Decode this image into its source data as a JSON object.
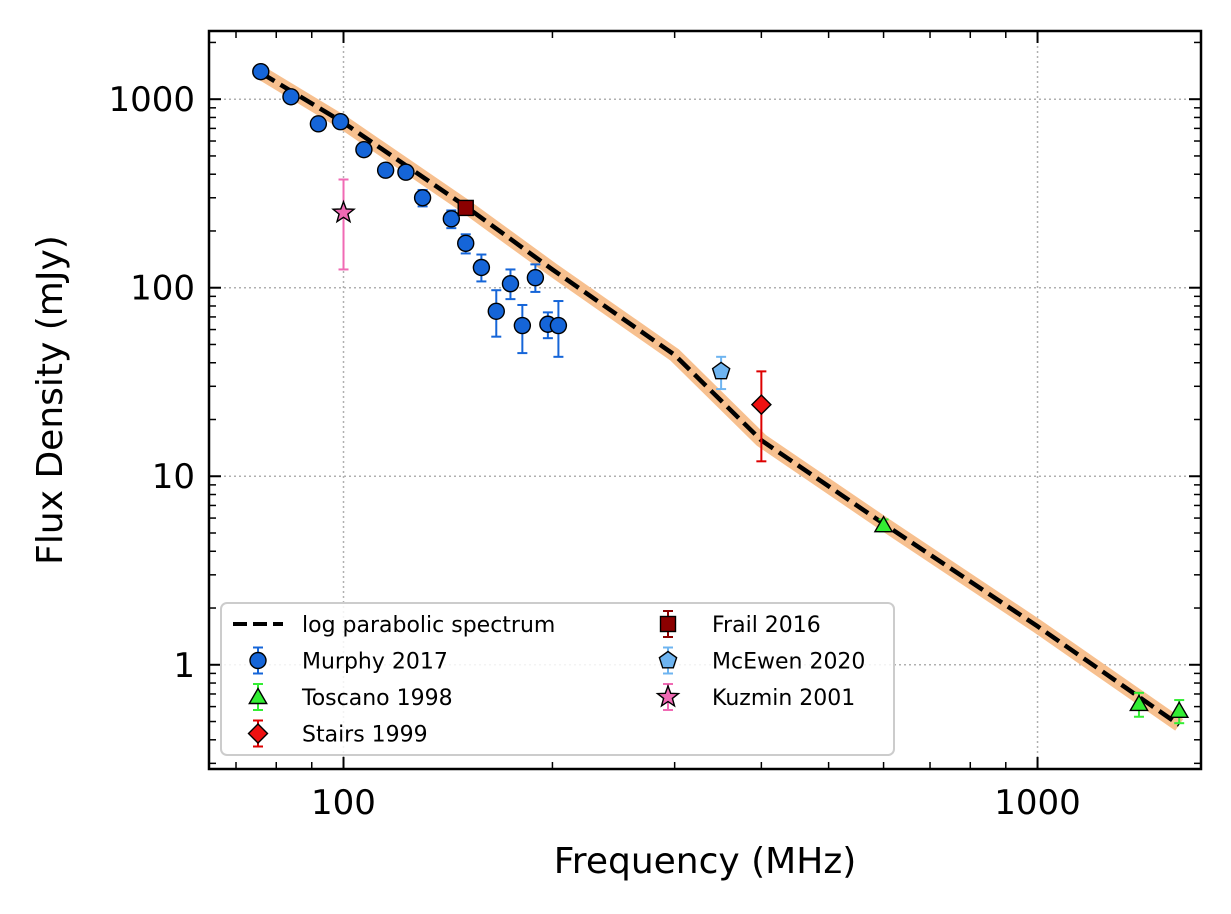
{
  "chart_data": {
    "type": "scatter",
    "xlabel": "Frequency (MHz)",
    "ylabel": "Flux Density (mJy)",
    "xscale": "log",
    "yscale": "log",
    "xlim": [
      64,
      1720
    ],
    "ylim": [
      0.28,
      2300
    ],
    "grid": true,
    "legend_placement": "lower-left",
    "x_ticks": [
      {
        "value": 100,
        "label": "100"
      },
      {
        "value": 1000,
        "label": "1000"
      }
    ],
    "y_ticks": [
      {
        "value": 1,
        "label": "1"
      },
      {
        "value": 10,
        "label": "10"
      },
      {
        "value": 100,
        "label": "100"
      },
      {
        "value": 1000,
        "label": "1000"
      }
    ],
    "fit": {
      "name": "log parabolic spectrum",
      "color": "#000000",
      "band_color": "#f7c08f",
      "x": [
        76,
        100,
        150,
        200,
        300,
        400,
        600,
        1000,
        1600
      ],
      "y": [
        1380,
        750,
        270,
        125,
        44,
        15.5,
        5.6,
        1.6,
        0.48
      ]
    },
    "series": [
      {
        "name": "Murphy 2017",
        "marker": "circle",
        "color": "#1565d8",
        "err_color": "#1565d8",
        "points": [
          {
            "x": 76,
            "y": 1400,
            "err": [
              0,
              0
            ]
          },
          {
            "x": 84,
            "y": 1030,
            "err": [
              0,
              0
            ]
          },
          {
            "x": 92,
            "y": 740,
            "err": [
              0,
              0
            ]
          },
          {
            "x": 99,
            "y": 760,
            "err": [
              0,
              0
            ]
          },
          {
            "x": 107,
            "y": 540,
            "err": [
              0,
              0
            ]
          },
          {
            "x": 115,
            "y": 420,
            "err": [
              0,
              0
            ]
          },
          {
            "x": 123,
            "y": 410,
            "err": [
              0,
              0
            ]
          },
          {
            "x": 130,
            "y": 300,
            "err": [
              30,
              30
            ]
          },
          {
            "x": 143,
            "y": 232,
            "err": [
              25,
              25
            ]
          },
          {
            "x": 150,
            "y": 172,
            "err": [
              20,
              20
            ]
          },
          {
            "x": 158,
            "y": 128,
            "err": [
              20,
              22
            ]
          },
          {
            "x": 166,
            "y": 75,
            "err": [
              20,
              22
            ]
          },
          {
            "x": 174,
            "y": 105,
            "err": [
              18,
              20
            ]
          },
          {
            "x": 181,
            "y": 63,
            "err": [
              18,
              18
            ]
          },
          {
            "x": 189,
            "y": 113,
            "err": [
              18,
              20
            ]
          },
          {
            "x": 197,
            "y": 64,
            "err": [
              10,
              10
            ]
          },
          {
            "x": 204,
            "y": 63,
            "err": [
              20,
              22
            ]
          }
        ]
      },
      {
        "name": "Toscano 1998",
        "marker": "triangle",
        "color": "#33ee33",
        "err_color": "#33ee33",
        "points": [
          {
            "x": 600,
            "y": 5.5,
            "err": [
              0.4,
              0.4
            ]
          },
          {
            "x": 1400,
            "y": 0.62,
            "err": [
              0.09,
              0.09
            ]
          },
          {
            "x": 1600,
            "y": 0.57,
            "err": [
              0.08,
              0.08
            ]
          }
        ]
      },
      {
        "name": "Stairs 1999",
        "marker": "diamond",
        "color": "#ee1111",
        "err_color": "#dd0000",
        "points": [
          {
            "x": 400,
            "y": 24,
            "err": [
              12,
              12
            ]
          }
        ]
      },
      {
        "name": "Frail 2016",
        "marker": "square",
        "color": "#8b0000",
        "err_color": "#8b0000",
        "points": [
          {
            "x": 150,
            "y": 265,
            "err": [
              0,
              0
            ]
          }
        ]
      },
      {
        "name": "McEwen 2020",
        "marker": "pentagon",
        "color": "#6eb4f0",
        "err_color": "#6eb4f0",
        "points": [
          {
            "x": 350,
            "y": 36,
            "err": [
              7,
              7
            ]
          }
        ]
      },
      {
        "name": "Kuzmin 2001",
        "marker": "star",
        "color": "#f06ab4",
        "err_color": "#f06ab4",
        "points": [
          {
            "x": 100,
            "y": 250,
            "err": [
              125,
              125
            ]
          }
        ]
      }
    ],
    "legend": {
      "columns": [
        [
          "log parabolic spectrum",
          "Murphy 2017",
          "Toscano 1998",
          "Stairs 1999"
        ],
        [
          "Frail 2016",
          "McEwen 2020",
          "Kuzmin 2001"
        ]
      ]
    }
  }
}
